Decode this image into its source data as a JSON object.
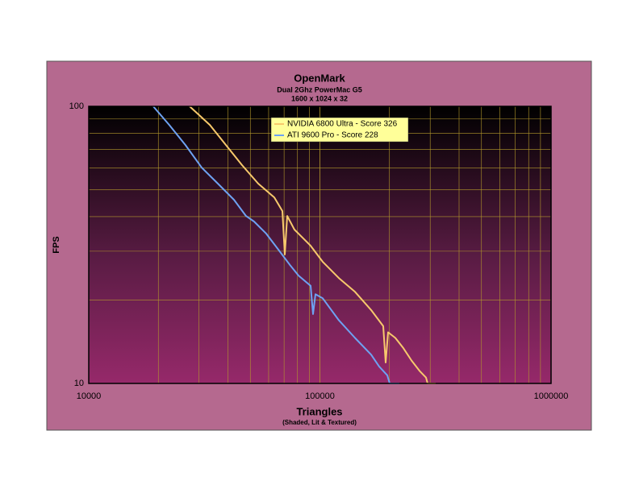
{
  "chart_data": {
    "type": "line",
    "title": "OpenMark",
    "subtitle": [
      "Dual 2Ghz PowerMac G5",
      "1600 x 1024 x 32"
    ],
    "x_label": "Triangles",
    "x_sublabel": "(Shaded, Lit & Textured)",
    "y_label": "FPS",
    "xlim": [
      10000,
      1000000
    ],
    "xticks": [
      10000,
      100000,
      1000000
    ],
    "xscale": "log",
    "ylim": [
      10,
      100
    ],
    "yticks": [
      10,
      100
    ],
    "yscale": "log",
    "grid": true,
    "minor_grid": true,
    "legend": "top",
    "series": [
      {
        "name": "NVIDIA 6800 Ultra - Score 326",
        "color": "#f7c96c",
        "x": [
          27300,
          33400,
          39200,
          46000,
          54100,
          63500,
          68800,
          70500,
          72200,
          77600,
          80800,
          91200,
          102800,
          120800,
          141800,
          166600,
          187900,
          192500,
          197200,
          212000,
          229800,
          249000,
          269800,
          287700,
          292400,
          316900
        ],
        "values": [
          100,
          85.7,
          72.5,
          61.4,
          52.6,
          46.9,
          41.9,
          29.2,
          40.2,
          35.9,
          34.7,
          31.4,
          27.5,
          24.0,
          21.4,
          18.4,
          16.1,
          11.9,
          15.3,
          14.6,
          13.4,
          12.1,
          11.1,
          10.5,
          10,
          10
        ]
      },
      {
        "name": "ATI 9600 Pro - Score 228",
        "color": "#6ea2f2",
        "x": [
          19000,
          22300,
          26200,
          30800,
          36200,
          42500,
          47900,
          51900,
          58600,
          66100,
          74600,
          80800,
          91200,
          93400,
          95700,
          102800,
          120800,
          141800,
          166600,
          180500,
          195600,
          200400,
          220700
        ],
        "values": [
          100,
          85.7,
          72.5,
          60.1,
          52.6,
          46.0,
          40.2,
          38.4,
          34.7,
          30.4,
          26.6,
          24.5,
          22.5,
          17.8,
          21.0,
          20.3,
          16.9,
          14.6,
          12.7,
          11.5,
          10.7,
          10,
          10
        ]
      }
    ]
  }
}
